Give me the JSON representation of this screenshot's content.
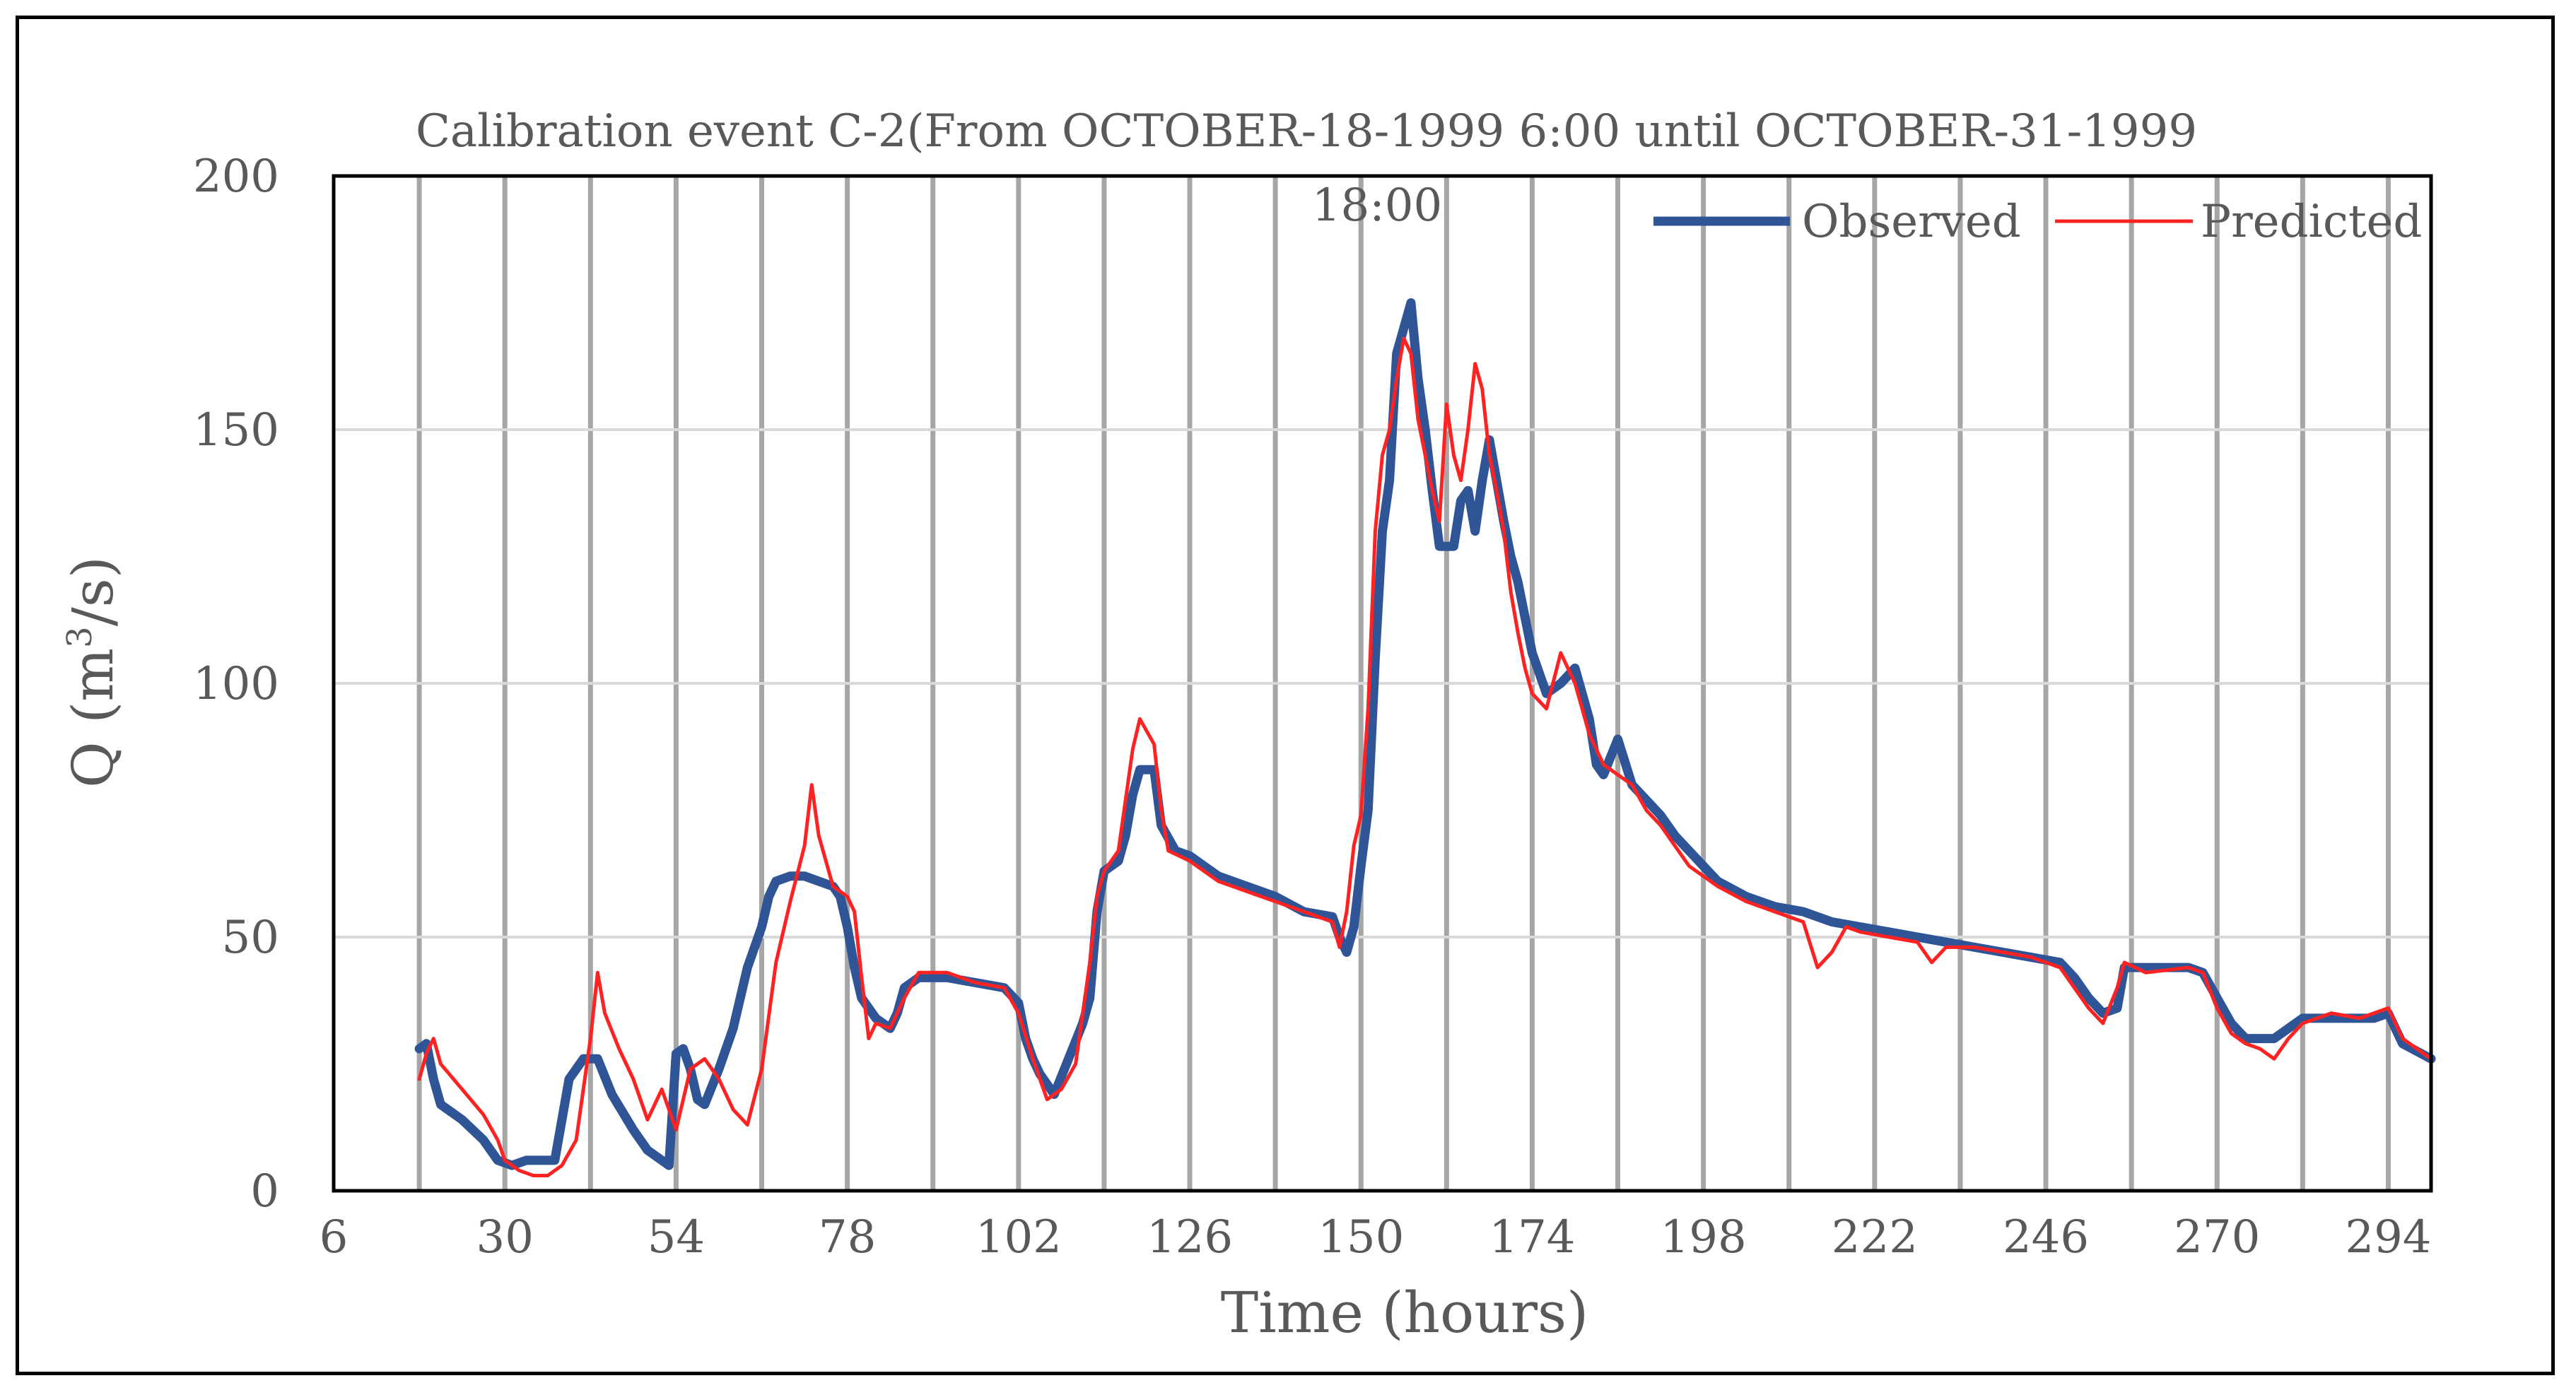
{
  "chart_data": {
    "type": "line",
    "title": "Calibration event C-2(From  OCTOBER-18-1999  6:00  until   OCTOBER-31-1999 18:00",
    "title_lines": [
      "Calibration event C-2(From  OCTOBER-18-1999  6:00  until   OCTOBER-31-1999",
      "18:00"
    ],
    "xlabel": "Time (hours)",
    "ylabel_main": "Q (m",
    "ylabel_sup": "3",
    "ylabel_tail": "/s)",
    "xlim": [
      6,
      300
    ],
    "ylim": [
      0,
      200
    ],
    "xticks": [
      6,
      30,
      54,
      78,
      102,
      126,
      150,
      174,
      198,
      222,
      246,
      270,
      294
    ],
    "yticks": [
      0,
      50,
      100,
      150,
      200
    ],
    "vertical_gridlines_every": 12,
    "horizontal_gridlines": true,
    "legend_position": "top-right",
    "series": [
      {
        "name": "Observed",
        "color": "#2f5597",
        "points": [
          [
            18,
            28
          ],
          [
            19,
            29
          ],
          [
            20,
            22
          ],
          [
            21,
            17
          ],
          [
            24,
            14
          ],
          [
            27,
            10
          ],
          [
            29,
            6
          ],
          [
            31,
            5
          ],
          [
            33,
            6
          ],
          [
            37,
            6
          ],
          [
            39,
            22
          ],
          [
            40,
            24
          ],
          [
            41,
            26
          ],
          [
            43,
            26
          ],
          [
            45,
            19
          ],
          [
            48,
            12
          ],
          [
            50,
            8
          ],
          [
            52,
            6
          ],
          [
            53,
            5
          ],
          [
            54,
            27
          ],
          [
            55,
            28
          ],
          [
            56,
            24
          ],
          [
            57,
            18
          ],
          [
            58,
            17
          ],
          [
            60,
            24
          ],
          [
            62,
            32
          ],
          [
            64,
            44
          ],
          [
            66,
            52
          ],
          [
            67,
            58
          ],
          [
            68,
            61
          ],
          [
            70,
            62
          ],
          [
            72,
            62
          ],
          [
            74,
            61
          ],
          [
            76,
            60
          ],
          [
            77,
            58
          ],
          [
            78,
            52
          ],
          [
            79,
            44
          ],
          [
            80,
            38
          ],
          [
            82,
            34
          ],
          [
            84,
            32
          ],
          [
            85,
            35
          ],
          [
            86,
            40
          ],
          [
            88,
            42
          ],
          [
            92,
            42
          ],
          [
            96,
            41
          ],
          [
            100,
            40
          ],
          [
            102,
            37
          ],
          [
            103,
            30
          ],
          [
            104,
            26
          ],
          [
            105,
            23
          ],
          [
            107,
            19
          ],
          [
            109,
            26
          ],
          [
            111,
            33
          ],
          [
            112,
            38
          ],
          [
            113,
            55
          ],
          [
            114,
            63
          ],
          [
            116,
            65
          ],
          [
            117,
            70
          ],
          [
            118,
            78
          ],
          [
            119,
            83
          ],
          [
            121,
            83
          ],
          [
            122,
            72
          ],
          [
            124,
            67
          ],
          [
            126,
            66
          ],
          [
            130,
            62
          ],
          [
            134,
            60
          ],
          [
            138,
            58
          ],
          [
            142,
            55
          ],
          [
            146,
            54
          ],
          [
            147,
            50
          ],
          [
            148,
            47
          ],
          [
            149,
            52
          ],
          [
            150,
            64
          ],
          [
            151,
            75
          ],
          [
            152,
            105
          ],
          [
            153,
            130
          ],
          [
            154,
            140
          ],
          [
            155,
            165
          ],
          [
            156,
            170
          ],
          [
            157,
            175
          ],
          [
            158,
            160
          ],
          [
            159,
            150
          ],
          [
            160,
            138
          ],
          [
            161,
            127
          ],
          [
            163,
            127
          ],
          [
            164,
            136
          ],
          [
            165,
            138
          ],
          [
            166,
            130
          ],
          [
            167,
            140
          ],
          [
            168,
            148
          ],
          [
            169,
            140
          ],
          [
            170,
            132
          ],
          [
            171,
            125
          ],
          [
            172,
            120
          ],
          [
            173,
            113
          ],
          [
            174,
            106
          ],
          [
            176,
            98
          ],
          [
            178,
            100
          ],
          [
            180,
            103
          ],
          [
            181,
            98
          ],
          [
            182,
            93
          ],
          [
            183,
            84
          ],
          [
            184,
            82
          ],
          [
            186,
            89
          ],
          [
            188,
            80
          ],
          [
            190,
            77
          ],
          [
            192,
            74
          ],
          [
            194,
            70
          ],
          [
            196,
            67
          ],
          [
            198,
            64
          ],
          [
            200,
            61
          ],
          [
            204,
            58
          ],
          [
            208,
            56
          ],
          [
            212,
            55
          ],
          [
            216,
            53
          ],
          [
            220,
            52
          ],
          [
            224,
            51
          ],
          [
            228,
            50
          ],
          [
            232,
            49
          ],
          [
            236,
            48
          ],
          [
            240,
            47
          ],
          [
            244,
            46
          ],
          [
            248,
            45
          ],
          [
            250,
            42
          ],
          [
            252,
            38
          ],
          [
            254,
            35
          ],
          [
            256,
            36
          ],
          [
            257,
            44
          ],
          [
            260,
            44
          ],
          [
            266,
            44
          ],
          [
            268,
            43
          ],
          [
            270,
            38
          ],
          [
            272,
            33
          ],
          [
            274,
            30
          ],
          [
            278,
            30
          ],
          [
            280,
            32
          ],
          [
            282,
            34
          ],
          [
            290,
            34
          ],
          [
            292,
            34
          ],
          [
            294,
            35
          ],
          [
            296,
            29
          ],
          [
            300,
            26
          ]
        ]
      },
      {
        "name": "Predicted",
        "color": "#ff2222",
        "points": [
          [
            18,
            22
          ],
          [
            19,
            27
          ],
          [
            20,
            30
          ],
          [
            21,
            25
          ],
          [
            24,
            20
          ],
          [
            27,
            15
          ],
          [
            29,
            10
          ],
          [
            30,
            6
          ],
          [
            32,
            4
          ],
          [
            34,
            3
          ],
          [
            36,
            3
          ],
          [
            38,
            5
          ],
          [
            40,
            10
          ],
          [
            41,
            20
          ],
          [
            42,
            30
          ],
          [
            43,
            43
          ],
          [
            44,
            35
          ],
          [
            46,
            28
          ],
          [
            48,
            22
          ],
          [
            50,
            14
          ],
          [
            52,
            20
          ],
          [
            54,
            12
          ],
          [
            56,
            24
          ],
          [
            58,
            26
          ],
          [
            60,
            22
          ],
          [
            62,
            16
          ],
          [
            64,
            13
          ],
          [
            66,
            24
          ],
          [
            68,
            45
          ],
          [
            70,
            57
          ],
          [
            72,
            68
          ],
          [
            73,
            80
          ],
          [
            74,
            70
          ],
          [
            76,
            60
          ],
          [
            78,
            58
          ],
          [
            79,
            55
          ],
          [
            80,
            42
          ],
          [
            81,
            30
          ],
          [
            82,
            33
          ],
          [
            84,
            32
          ],
          [
            86,
            38
          ],
          [
            88,
            43
          ],
          [
            92,
            43
          ],
          [
            96,
            41
          ],
          [
            100,
            40
          ],
          [
            102,
            35
          ],
          [
            104,
            26
          ],
          [
            106,
            18
          ],
          [
            108,
            20
          ],
          [
            110,
            25
          ],
          [
            111,
            35
          ],
          [
            112,
            45
          ],
          [
            113,
            58
          ],
          [
            114,
            63
          ],
          [
            116,
            67
          ],
          [
            117,
            77
          ],
          [
            118,
            87
          ],
          [
            119,
            93
          ],
          [
            121,
            88
          ],
          [
            122,
            75
          ],
          [
            123,
            67
          ],
          [
            126,
            65
          ],
          [
            130,
            61
          ],
          [
            134,
            59
          ],
          [
            138,
            57
          ],
          [
            142,
            55
          ],
          [
            146,
            53
          ],
          [
            147,
            48
          ],
          [
            148,
            55
          ],
          [
            149,
            68
          ],
          [
            150,
            74
          ],
          [
            151,
            95
          ],
          [
            152,
            130
          ],
          [
            153,
            145
          ],
          [
            154,
            150
          ],
          [
            155,
            160
          ],
          [
            156,
            168
          ],
          [
            157,
            165
          ],
          [
            158,
            152
          ],
          [
            159,
            145
          ],
          [
            160,
            138
          ],
          [
            161,
            132
          ],
          [
            162,
            155
          ],
          [
            163,
            145
          ],
          [
            164,
            140
          ],
          [
            165,
            150
          ],
          [
            166,
            163
          ],
          [
            167,
            158
          ],
          [
            168,
            145
          ],
          [
            169,
            138
          ],
          [
            170,
            130
          ],
          [
            171,
            118
          ],
          [
            172,
            110
          ],
          [
            173,
            103
          ],
          [
            174,
            98
          ],
          [
            176,
            95
          ],
          [
            178,
            106
          ],
          [
            180,
            100
          ],
          [
            182,
            90
          ],
          [
            184,
            84
          ],
          [
            186,
            82
          ],
          [
            188,
            80
          ],
          [
            190,
            75
          ],
          [
            192,
            72
          ],
          [
            194,
            68
          ],
          [
            196,
            64
          ],
          [
            198,
            62
          ],
          [
            200,
            60
          ],
          [
            204,
            57
          ],
          [
            208,
            55
          ],
          [
            212,
            53
          ],
          [
            214,
            44
          ],
          [
            216,
            47
          ],
          [
            218,
            52
          ],
          [
            220,
            51
          ],
          [
            224,
            50
          ],
          [
            228,
            49
          ],
          [
            230,
            45
          ],
          [
            232,
            48
          ],
          [
            236,
            48
          ],
          [
            240,
            47
          ],
          [
            244,
            46
          ],
          [
            248,
            44
          ],
          [
            250,
            40
          ],
          [
            252,
            36
          ],
          [
            254,
            33
          ],
          [
            256,
            40
          ],
          [
            257,
            45
          ],
          [
            260,
            43
          ],
          [
            266,
            44
          ],
          [
            268,
            43
          ],
          [
            270,
            36
          ],
          [
            272,
            31
          ],
          [
            274,
            29
          ],
          [
            276,
            28
          ],
          [
            278,
            26
          ],
          [
            280,
            30
          ],
          [
            282,
            33
          ],
          [
            286,
            35
          ],
          [
            290,
            34
          ],
          [
            294,
            36
          ],
          [
            296,
            30
          ],
          [
            300,
            26
          ]
        ]
      }
    ]
  }
}
